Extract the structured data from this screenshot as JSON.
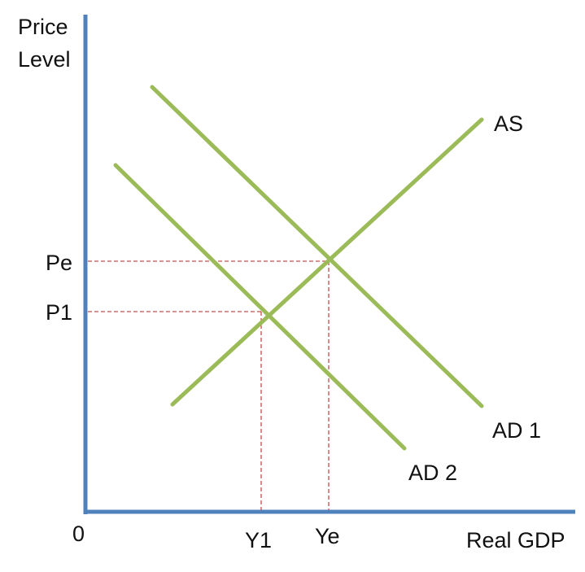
{
  "y_axis_label_line1": "Price",
  "y_axis_label_line2": "Level",
  "x_axis_label": "Real GDP",
  "origin_label": "0",
  "curves": {
    "as": "AS",
    "ad1": "AD 1",
    "ad2": "AD 2"
  },
  "price_labels": {
    "pe": "Pe",
    "p1": "P1"
  },
  "quantity_labels": {
    "y1": "Y1",
    "ye": "Ye"
  },
  "colors": {
    "axis": "#4f81bd",
    "curve": "#9bbb59",
    "guide": "#c0504d"
  }
}
